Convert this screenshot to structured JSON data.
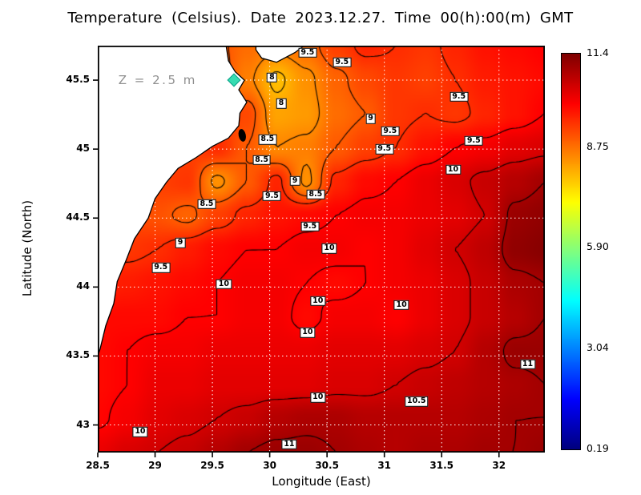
{
  "chart_data": {
    "type": "heatmap",
    "title": "Temperature (Celsius). Date 2023.12.27. Time 00(h):00(m) GMT",
    "xlabel": "Longitude (East)",
    "ylabel": "Latitude (North)",
    "x_range": [
      28.5,
      32.4
    ],
    "y_range": [
      42.8,
      45.75
    ],
    "x_ticks": [
      28.5,
      29,
      29.5,
      30,
      30.5,
      31,
      31.5,
      32
    ],
    "y_ticks": [
      45.5,
      45,
      44.5,
      44,
      43.5,
      43
    ],
    "grid_on": true,
    "colormap": "jet",
    "contour_levels": [
      8,
      8.5,
      9,
      9.5,
      10,
      10.5,
      11
    ],
    "colorbar": {
      "min": 0.19,
      "max": 11.4,
      "ticks": [
        {
          "label": "11.4",
          "value": 11.4
        },
        {
          "label": "8.75",
          "value": 8.75
        },
        {
          "label": "5.90",
          "value": 5.9
        },
        {
          "label": "3.04",
          "value": 3.04
        },
        {
          "label": "0.19",
          "value": 0.19
        }
      ]
    },
    "grid": {
      "lon": [
        28.5,
        28.76,
        29.02,
        29.28,
        29.54,
        29.8,
        30.06,
        30.32,
        30.58,
        30.84,
        31.1,
        31.36,
        31.62,
        31.88,
        32.14,
        32.4
      ],
      "lat": [
        45.75,
        45.5,
        45.25,
        45.0,
        44.75,
        44.5,
        44.25,
        44.0,
        43.75,
        43.5,
        43.25,
        43.0,
        42.8
      ],
      "values": [
        [
          9.0,
          9.0,
          9.0,
          9.0,
          9.1,
          8.8,
          8.6,
          8.8,
          9.3,
          9.6,
          9.5,
          9.4,
          9.6,
          9.8,
          9.9,
          10.0
        ],
        [
          9.0,
          9.0,
          9.0,
          9.1,
          9.3,
          8.6,
          7.9,
          8.4,
          8.9,
          9.2,
          9.4,
          9.3,
          9.5,
          9.7,
          9.8,
          9.9
        ],
        [
          9.0,
          9.0,
          9.0,
          9.2,
          9.4,
          9.2,
          8.2,
          8.3,
          8.8,
          9.0,
          9.4,
          9.5,
          9.4,
          9.6,
          9.8,
          10.0
        ],
        [
          9.1,
          9.1,
          9.2,
          9.3,
          9.5,
          9.0,
          8.5,
          8.6,
          9.0,
          9.3,
          9.5,
          9.8,
          10.0,
          10.1,
          10.3,
          10.4
        ],
        [
          9.2,
          9.3,
          9.3,
          9.4,
          8.4,
          9.0,
          9.6,
          8.4,
          9.6,
          9.9,
          10.0,
          10.2,
          10.4,
          10.6,
          10.8,
          11.0
        ],
        [
          9.2,
          9.2,
          9.1,
          8.9,
          9.3,
          9.6,
          9.8,
          9.9,
          10.0,
          10.1,
          10.1,
          10.2,
          10.3,
          10.5,
          11.1,
          11.2
        ],
        [
          9.3,
          9.4,
          9.5,
          9.7,
          9.9,
          10.0,
          10.0,
          10.1,
          10.1,
          10.0,
          10.1,
          10.3,
          10.5,
          10.7,
          11.2,
          11.3
        ],
        [
          9.6,
          9.7,
          9.8,
          9.9,
          10.0,
          10.1,
          10.1,
          10.0,
          9.9,
          10.0,
          10.1,
          10.2,
          10.4,
          10.6,
          10.9,
          11.0
        ],
        [
          9.9,
          9.9,
          9.9,
          10.0,
          10.0,
          10.1,
          10.1,
          9.9,
          10.1,
          10.1,
          10.0,
          10.2,
          10.4,
          10.6,
          10.8,
          11.0
        ],
        [
          9.9,
          10.0,
          10.1,
          10.1,
          10.2,
          10.2,
          10.2,
          10.2,
          10.3,
          10.3,
          10.3,
          10.4,
          10.5,
          10.8,
          11.1,
          11.1
        ],
        [
          9.9,
          10.0,
          10.2,
          10.2,
          10.3,
          10.3,
          10.3,
          10.3,
          10.4,
          10.4,
          10.5,
          10.6,
          10.7,
          10.8,
          10.9,
          11.0
        ],
        [
          9.95,
          10.1,
          10.3,
          10.4,
          10.5,
          10.6,
          10.8,
          10.9,
          10.9,
          10.8,
          10.8,
          10.8,
          10.8,
          10.9,
          11.0,
          11.0
        ],
        [
          10.2,
          10.4,
          10.5,
          10.6,
          10.8,
          11.0,
          11.1,
          11.1,
          11.0,
          10.9,
          10.8,
          10.9,
          10.9,
          11.0,
          11.0,
          11.1
        ]
      ]
    },
    "contour_labels": [
      {
        "v": "9.5",
        "lon": 30.33,
        "lat": 45.7
      },
      {
        "v": "9.5",
        "lon": 30.63,
        "lat": 45.63
      },
      {
        "v": "8",
        "lon": 30.02,
        "lat": 45.52
      },
      {
        "v": "8",
        "lon": 30.1,
        "lat": 45.33
      },
      {
        "v": "9",
        "lon": 30.88,
        "lat": 45.22
      },
      {
        "v": "9.5",
        "lon": 31.05,
        "lat": 45.13
      },
      {
        "v": "9.5",
        "lon": 31.65,
        "lat": 45.38
      },
      {
        "v": "9.5",
        "lon": 31.78,
        "lat": 45.06
      },
      {
        "v": "8.5",
        "lon": 29.98,
        "lat": 45.07
      },
      {
        "v": "8.5",
        "lon": 29.93,
        "lat": 44.92
      },
      {
        "v": "9.5",
        "lon": 31.0,
        "lat": 45.0
      },
      {
        "v": "10",
        "lon": 31.6,
        "lat": 44.85
      },
      {
        "v": "9",
        "lon": 30.22,
        "lat": 44.77
      },
      {
        "v": "9.5",
        "lon": 30.02,
        "lat": 44.66
      },
      {
        "v": "8.5",
        "lon": 30.4,
        "lat": 44.67
      },
      {
        "v": "8.5",
        "lon": 29.45,
        "lat": 44.6
      },
      {
        "v": "9.5",
        "lon": 30.35,
        "lat": 44.44
      },
      {
        "v": "9",
        "lon": 29.22,
        "lat": 44.32
      },
      {
        "v": "9.5",
        "lon": 29.05,
        "lat": 44.14
      },
      {
        "v": "10",
        "lon": 30.52,
        "lat": 44.28
      },
      {
        "v": "10",
        "lon": 29.6,
        "lat": 44.02
      },
      {
        "v": "10",
        "lon": 30.42,
        "lat": 43.9
      },
      {
        "v": "10",
        "lon": 31.15,
        "lat": 43.87
      },
      {
        "v": "10",
        "lon": 30.33,
        "lat": 43.67
      },
      {
        "v": "11",
        "lon": 32.25,
        "lat": 43.44
      },
      {
        "v": "10",
        "lon": 30.42,
        "lat": 43.2
      },
      {
        "v": "10.5",
        "lon": 31.28,
        "lat": 43.17
      },
      {
        "v": "10",
        "lon": 28.87,
        "lat": 42.95
      },
      {
        "v": "11",
        "lon": 30.17,
        "lat": 42.86
      }
    ],
    "land": {
      "fill": "#ffffff",
      "coast_color": "#000000",
      "polygons": [
        [
          [
            28.5,
            45.75
          ],
          [
            29.62,
            45.75
          ],
          [
            29.64,
            45.64
          ],
          [
            29.7,
            45.56
          ],
          [
            29.78,
            45.5
          ],
          [
            29.73,
            45.43
          ],
          [
            29.8,
            45.34
          ],
          [
            29.74,
            45.26
          ],
          [
            29.73,
            45.17
          ],
          [
            29.64,
            45.08
          ],
          [
            29.5,
            45.02
          ],
          [
            29.36,
            44.94
          ],
          [
            29.2,
            44.86
          ],
          [
            29.1,
            44.76
          ],
          [
            29.0,
            44.64
          ],
          [
            28.94,
            44.5
          ],
          [
            28.82,
            44.35
          ],
          [
            28.75,
            44.2
          ],
          [
            28.67,
            44.04
          ],
          [
            28.64,
            43.88
          ],
          [
            28.57,
            43.72
          ],
          [
            28.52,
            43.55
          ],
          [
            28.5,
            43.5
          ]
        ],
        [
          [
            29.88,
            45.75
          ],
          [
            30.3,
            45.75
          ],
          [
            30.22,
            45.7
          ],
          [
            30.06,
            45.63
          ],
          [
            29.93,
            45.66
          ],
          [
            29.88,
            45.72
          ]
        ]
      ],
      "lake": {
        "lon": 29.76,
        "lat": 45.1
      }
    },
    "gridline_color": "#ffffff",
    "contour_color": "#000000"
  },
  "annotation": {
    "text": "Z = 2.5 m",
    "lon": 28.68,
    "lat": 45.5,
    "marker": {
      "lon": 29.69,
      "lat": 45.5,
      "color": "#35dcb1"
    }
  }
}
